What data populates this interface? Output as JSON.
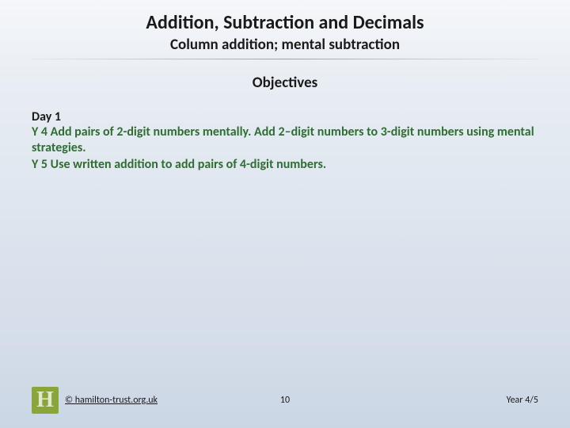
{
  "header": {
    "title": "Addition, Subtraction and Decimals",
    "subtitle": "Column addition; mental subtraction",
    "objectives_heading": "Objectives"
  },
  "content": {
    "day_label": "Day 1",
    "y4_prefix": "Y 4 ",
    "y4_text": "Add pairs of 2-digit numbers mentally. Add 2–digit numbers to 3-digit numbers using mental strategies.",
    "y5_prefix": "Y 5 ",
    "y5_text": "Use written addition to add pairs of 4-digit numbers."
  },
  "footer": {
    "logo_letter": "H",
    "copyright": "© hamilton-trust.org.uk",
    "page_number": "10",
    "year": "Year 4/5"
  },
  "colors": {
    "objective_text": "#2f6d33",
    "logo_bg": "#8aa63a",
    "body_text": "#1a1a1a"
  }
}
